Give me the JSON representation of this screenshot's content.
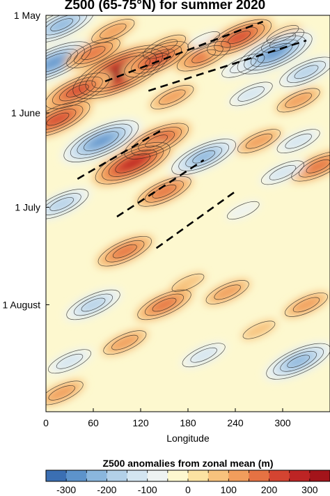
{
  "chart_data": {
    "type": "heatmap",
    "title": "Z500 (65-75°N) for summer 2020",
    "xlabel": "Longitude",
    "xlim": [
      0,
      360
    ],
    "x_ticks": [
      "0",
      "60",
      "120",
      "180",
      "240",
      "300"
    ],
    "y_ticks": [
      "1 May",
      "1 June",
      "1 July",
      "1 August"
    ],
    "colorbar": {
      "title": "Z500 anomalies from zonal mean (m)",
      "range": [
        -350,
        350
      ],
      "step": 50,
      "tick_labels": [
        "-300",
        "-200",
        "-100",
        "0",
        "100",
        "200",
        "300"
      ],
      "colors": [
        "#3b6fb3",
        "#5d93cb",
        "#8ab6dd",
        "#b2d0e8",
        "#d3e5f1",
        "#eef3f2",
        "#fdf8cf",
        "#fbe2a2",
        "#f7c27d",
        "#f19d5c",
        "#e57243",
        "#d44431",
        "#bd2424",
        "#a3141a"
      ]
    },
    "blobs": [
      {
        "lon": 20,
        "day": 3,
        "value": -210
      },
      {
        "lon": 85,
        "day": 5,
        "value": 120
      },
      {
        "lon": 150,
        "day": 10,
        "value": 80
      },
      {
        "lon": 300,
        "day": 6,
        "value": 70
      },
      {
        "lon": 200,
        "day": 8,
        "value": -60
      },
      {
        "lon": 10,
        "day": 15,
        "value": -250
      },
      {
        "lon": 60,
        "day": 12,
        "value": 170
      },
      {
        "lon": 95,
        "day": 18,
        "value": 330
      },
      {
        "lon": 140,
        "day": 14,
        "value": 200
      },
      {
        "lon": 200,
        "day": 13,
        "value": 150
      },
      {
        "lon": 245,
        "day": 7,
        "value": 200
      },
      {
        "lon": 300,
        "day": 8,
        "value": 110
      },
      {
        "lon": 250,
        "day": 16,
        "value": -90
      },
      {
        "lon": 290,
        "day": 12,
        "value": -240
      },
      {
        "lon": 330,
        "day": 18,
        "value": -130
      },
      {
        "lon": 40,
        "day": 24,
        "value": 200
      },
      {
        "lon": 160,
        "day": 26,
        "value": 90
      },
      {
        "lon": 260,
        "day": 25,
        "value": -120
      },
      {
        "lon": 320,
        "day": 27,
        "value": 80
      },
      {
        "lon": 15,
        "day": 33,
        "value": 220
      },
      {
        "lon": 70,
        "day": 40,
        "value": -230
      },
      {
        "lon": 140,
        "day": 40,
        "value": 200
      },
      {
        "lon": 110,
        "day": 47,
        "value": 240
      },
      {
        "lon": 200,
        "day": 45,
        "value": -220
      },
      {
        "lon": 270,
        "day": 40,
        "value": 110
      },
      {
        "lon": 320,
        "day": 40,
        "value": -100
      },
      {
        "lon": 345,
        "day": 48,
        "value": 150
      },
      {
        "lon": 20,
        "day": 60,
        "value": -160
      },
      {
        "lon": 150,
        "day": 56,
        "value": 160
      },
      {
        "lon": 250,
        "day": 62,
        "value": -70
      },
      {
        "lon": 300,
        "day": 50,
        "value": -90
      },
      {
        "lon": 100,
        "day": 75,
        "value": 170
      },
      {
        "lon": 180,
        "day": 85,
        "value": 60
      },
      {
        "lon": 60,
        "day": 92,
        "value": -150
      },
      {
        "lon": 150,
        "day": 92,
        "value": 150
      },
      {
        "lon": 230,
        "day": 88,
        "value": 120
      },
      {
        "lon": 330,
        "day": 92,
        "value": 90
      },
      {
        "lon": 30,
        "day": 110,
        "value": -80
      },
      {
        "lon": 100,
        "day": 104,
        "value": 80
      },
      {
        "lon": 200,
        "day": 108,
        "value": -120
      },
      {
        "lon": 320,
        "day": 110,
        "value": -180
      },
      {
        "lon": 270,
        "day": 100,
        "value": 70
      },
      {
        "lon": 20,
        "day": 120,
        "value": 100
      }
    ],
    "trend_lines": [
      {
        "lon_start": 75,
        "day_start": 21,
        "lon_end": 275,
        "day_end": 2
      },
      {
        "lon_start": 130,
        "day_start": 24,
        "lon_end": 330,
        "day_end": 8
      },
      {
        "lon_start": 40,
        "day_start": 52,
        "lon_end": 150,
        "day_end": 36
      },
      {
        "lon_start": 90,
        "day_start": 64,
        "lon_end": 200,
        "day_end": 46
      },
      {
        "lon_start": 140,
        "day_start": 74,
        "lon_end": 240,
        "day_end": 56
      }
    ]
  }
}
